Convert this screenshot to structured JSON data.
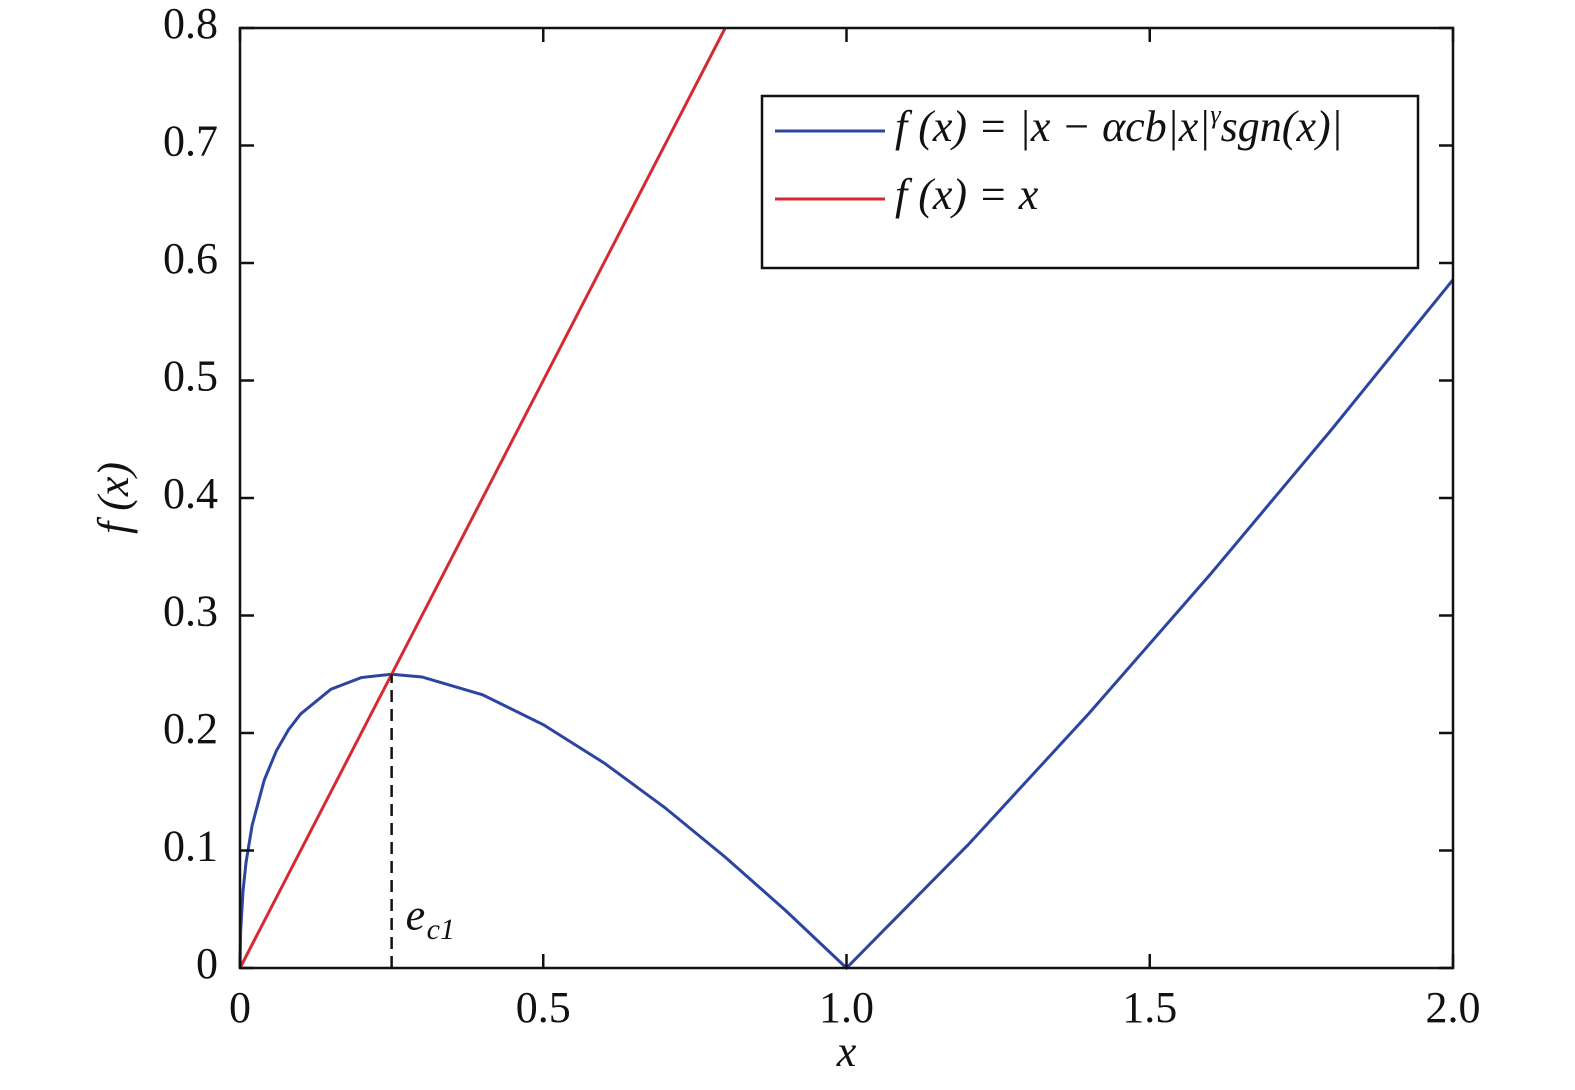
{
  "chart_data": {
    "type": "line",
    "xlabel": "x",
    "ylabel": "f (x)",
    "xlim": [
      0,
      2
    ],
    "ylim": [
      0,
      0.8
    ],
    "xticks": [
      0,
      0.5,
      {
        "value": 1,
        "label": "1.0"
      },
      1.5,
      {
        "value": 2,
        "label": "2.0"
      }
    ],
    "yticks": [
      0,
      0.1,
      0.2,
      0.3,
      0.4,
      0.5,
      0.6,
      0.7,
      0.8
    ],
    "legend": "upper right",
    "series": [
      {
        "name": "f (x) = |x − αcb|x|γsgn(x)|",
        "color": "#2b45a0",
        "x": [
          0,
          0.001,
          0.005,
          0.01,
          0.02,
          0.04,
          0.06,
          0.08,
          0.1,
          0.15,
          0.2,
          0.25,
          0.3,
          0.4,
          0.5,
          0.6,
          0.7,
          0.8,
          0.9,
          1.0,
          1.2,
          1.4,
          1.6,
          1.8,
          2.0
        ],
        "values": [
          0,
          0.0306,
          0.0657,
          0.09,
          0.1214,
          0.16,
          0.1849,
          0.2028,
          0.2162,
          0.2373,
          0.2472,
          0.25,
          0.2477,
          0.2325,
          0.2071,
          0.1746,
          0.1367,
          0.0944,
          0.0487,
          0,
          0.1046,
          0.2168,
          0.3351,
          0.4584,
          0.5858
        ]
      },
      {
        "name": "f (x) = x",
        "color": "#d62a33",
        "x": [
          0,
          0.8
        ],
        "values": [
          0,
          0.8
        ]
      }
    ],
    "annotation": {
      "x": 0.25,
      "y": 0.25,
      "text": "e",
      "subscript": "c1"
    }
  }
}
